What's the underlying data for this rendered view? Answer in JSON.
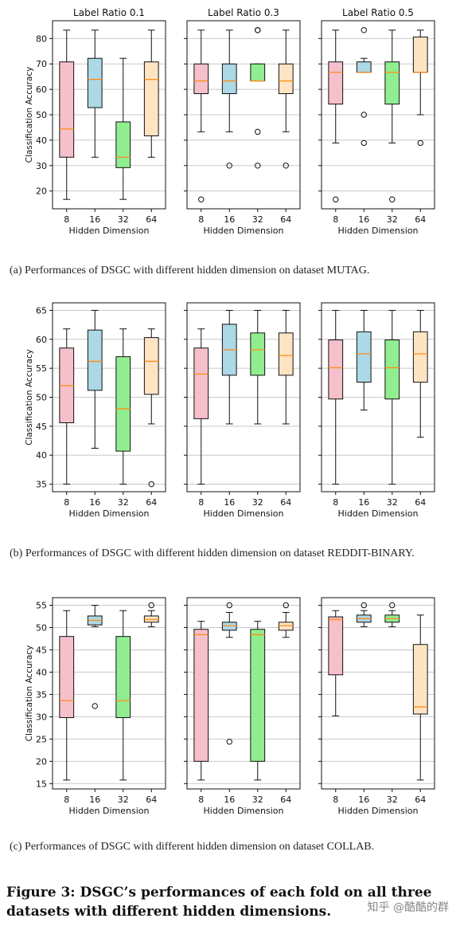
{
  "chart_data": [
    {
      "type": "box",
      "caption": "(a)  Performances of DSGC with different hidden dimension on dataset MUTAG.",
      "ylabel": "Classification Accuracy",
      "xlabel": "Hidden Dimension",
      "ylim": [
        13,
        87
      ],
      "yticks": [
        20,
        30,
        40,
        50,
        60,
        70,
        80
      ],
      "panels": [
        {
          "title": "Label Ratio 0.1",
          "boxes": [
            {
              "x": "8",
              "whislo": 16.7,
              "q1": 33.3,
              "med": 44.4,
              "q3": 70.8,
              "whishi": 83.3,
              "fliers": []
            },
            {
              "x": "16",
              "whislo": 33.3,
              "q1": 52.8,
              "med": 63.9,
              "q3": 72.2,
              "whishi": 83.3,
              "fliers": []
            },
            {
              "x": "32",
              "whislo": 16.7,
              "q1": 29.2,
              "med": 33.3,
              "q3": 47.2,
              "whishi": 72.2,
              "fliers": []
            },
            {
              "x": "64",
              "whislo": 33.3,
              "q1": 41.7,
              "med": 63.9,
              "q3": 70.8,
              "whishi": 83.3,
              "fliers": []
            }
          ]
        },
        {
          "title": "Label Ratio 0.3",
          "boxes": [
            {
              "x": "8",
              "whislo": 43.3,
              "q1": 58.3,
              "med": 63.3,
              "q3": 70.0,
              "whishi": 83.3,
              "fliers": [
                16.7
              ]
            },
            {
              "x": "16",
              "whislo": 43.3,
              "q1": 58.3,
              "med": 63.3,
              "q3": 70.0,
              "whishi": 83.3,
              "fliers": [
                30.0
              ]
            },
            {
              "x": "32",
              "whislo": 63.3,
              "q1": 63.3,
              "med": 63.3,
              "q3": 70.0,
              "whishi": 70.0,
              "fliers": [
                43.3,
                30.0,
                83.3,
                83.3
              ]
            },
            {
              "x": "64",
              "whislo": 43.3,
              "q1": 58.3,
              "med": 63.3,
              "q3": 70.0,
              "whishi": 83.3,
              "fliers": [
                30.0
              ]
            }
          ]
        },
        {
          "title": "Label Ratio 0.5",
          "boxes": [
            {
              "x": "8",
              "whislo": 38.9,
              "q1": 54.2,
              "med": 66.7,
              "q3": 70.8,
              "whishi": 83.3,
              "fliers": [
                16.7
              ]
            },
            {
              "x": "16",
              "whislo": 66.7,
              "q1": 66.7,
              "med": 66.7,
              "q3": 70.8,
              "whishi": 72.2,
              "fliers": [
                83.3,
                50.0,
                38.9
              ]
            },
            {
              "x": "32",
              "whislo": 38.9,
              "q1": 54.2,
              "med": 66.7,
              "q3": 70.8,
              "whishi": 83.3,
              "fliers": [
                16.7
              ]
            },
            {
              "x": "64",
              "whislo": 50.0,
              "q1": 66.7,
              "med": 66.7,
              "q3": 80.6,
              "whishi": 83.3,
              "fliers": [
                38.9
              ]
            }
          ]
        }
      ]
    },
    {
      "type": "box",
      "caption": "(b)  Performances of DSGC with different hidden dimension on dataset REDDIT-BINARY.",
      "ylabel": "Classification Accuracy",
      "xlabel": "Hidden Dimension",
      "ylim": [
        33.7,
        66.3
      ],
      "yticks": [
        35,
        40,
        45,
        50,
        55,
        60,
        65
      ],
      "panels": [
        {
          "title": "",
          "boxes": [
            {
              "x": "8",
              "whislo": 35.0,
              "q1": 45.6,
              "med": 52.0,
              "q3": 58.5,
              "whishi": 61.8,
              "fliers": []
            },
            {
              "x": "16",
              "whislo": 41.2,
              "q1": 51.2,
              "med": 56.2,
              "q3": 61.6,
              "whishi": 65.0,
              "fliers": []
            },
            {
              "x": "32",
              "whislo": 35.0,
              "q1": 40.7,
              "med": 48.0,
              "q3": 57.0,
              "whishi": 61.8,
              "fliers": []
            },
            {
              "x": "64",
              "whislo": 45.4,
              "q1": 50.5,
              "med": 56.2,
              "q3": 60.3,
              "whishi": 61.8,
              "fliers": [
                35.0
              ]
            }
          ]
        },
        {
          "title": "",
          "boxes": [
            {
              "x": "8",
              "whislo": 35.0,
              "q1": 46.3,
              "med": 54.0,
              "q3": 58.5,
              "whishi": 61.8,
              "fliers": []
            },
            {
              "x": "16",
              "whislo": 45.4,
              "q1": 53.8,
              "med": 58.2,
              "q3": 62.6,
              "whishi": 65.0,
              "fliers": []
            },
            {
              "x": "32",
              "whislo": 45.4,
              "q1": 53.8,
              "med": 58.2,
              "q3": 61.1,
              "whishi": 65.0,
              "fliers": []
            },
            {
              "x": "64",
              "whislo": 45.4,
              "q1": 53.8,
              "med": 57.2,
              "q3": 61.1,
              "whishi": 65.0,
              "fliers": []
            }
          ]
        },
        {
          "title": "",
          "boxes": [
            {
              "x": "8",
              "whislo": 35.0,
              "q1": 49.7,
              "med": 55.1,
              "q3": 59.9,
              "whishi": 65.0,
              "fliers": []
            },
            {
              "x": "16",
              "whislo": 47.8,
              "q1": 52.6,
              "med": 57.5,
              "q3": 61.3,
              "whishi": 65.0,
              "fliers": []
            },
            {
              "x": "32",
              "whislo": 35.0,
              "q1": 49.7,
              "med": 55.1,
              "q3": 59.9,
              "whishi": 65.0,
              "fliers": []
            },
            {
              "x": "64",
              "whislo": 43.1,
              "q1": 52.6,
              "med": 57.5,
              "q3": 61.3,
              "whishi": 65.0,
              "fliers": []
            }
          ]
        }
      ]
    },
    {
      "type": "box",
      "caption": "(c)  Performances of DSGC with different hidden dimension on dataset COLLAB.",
      "ylabel": "Classification Accuracy",
      "xlabel": "Hidden Dimension",
      "ylim": [
        13.8,
        56.7
      ],
      "yticks": [
        15,
        20,
        25,
        30,
        35,
        40,
        45,
        50,
        55
      ],
      "panels": [
        {
          "title": "",
          "boxes": [
            {
              "x": "8",
              "whislo": 15.8,
              "q1": 29.8,
              "med": 33.6,
              "q3": 48.0,
              "whishi": 53.8,
              "fliers": []
            },
            {
              "x": "16",
              "whislo": 50.2,
              "q1": 50.6,
              "med": 51.6,
              "q3": 52.6,
              "whishi": 55.0,
              "fliers": [
                32.4
              ]
            },
            {
              "x": "32",
              "whislo": 15.8,
              "q1": 29.8,
              "med": 33.6,
              "q3": 48.0,
              "whishi": 53.8,
              "fliers": []
            },
            {
              "x": "64",
              "whislo": 50.2,
              "q1": 51.2,
              "med": 51.8,
              "q3": 52.6,
              "whishi": 53.8,
              "fliers": [
                55.0
              ]
            }
          ]
        },
        {
          "title": "",
          "boxes": [
            {
              "x": "8",
              "whislo": 15.8,
              "q1": 20.0,
              "med": 48.4,
              "q3": 49.6,
              "whishi": 51.4,
              "fliers": []
            },
            {
              "x": "16",
              "whislo": 47.8,
              "q1": 49.4,
              "med": 50.4,
              "q3": 51.2,
              "whishi": 53.4,
              "fliers": [
                55.0,
                24.4
              ]
            },
            {
              "x": "32",
              "whislo": 15.8,
              "q1": 20.0,
              "med": 48.4,
              "q3": 49.6,
              "whishi": 51.4,
              "fliers": []
            },
            {
              "x": "64",
              "whislo": 47.8,
              "q1": 49.4,
              "med": 50.4,
              "q3": 51.2,
              "whishi": 53.4,
              "fliers": [
                55.0
              ]
            }
          ]
        },
        {
          "title": "",
          "boxes": [
            {
              "x": "8",
              "whislo": 30.2,
              "q1": 39.4,
              "med": 51.8,
              "q3": 52.4,
              "whishi": 53.8,
              "fliers": []
            },
            {
              "x": "16",
              "whislo": 50.2,
              "q1": 51.2,
              "med": 52.0,
              "q3": 52.8,
              "whishi": 53.8,
              "fliers": [
                55.0
              ]
            },
            {
              "x": "32",
              "whislo": 50.2,
              "q1": 51.2,
              "med": 52.0,
              "q3": 52.8,
              "whishi": 53.8,
              "fliers": [
                55.0
              ]
            },
            {
              "x": "64",
              "whislo": 15.8,
              "q1": 30.6,
              "med": 32.2,
              "q3": 46.2,
              "whishi": 52.8,
              "fliers": []
            }
          ]
        }
      ]
    }
  ],
  "box_colors": [
    "#f6c0cb",
    "#add8e6",
    "#90ee90",
    "#ffe4c4"
  ],
  "median_color": "#ff8c1a",
  "grid_color": "#c8c8c8",
  "figure_caption": "Figure 3: DSGC’s performances of each fold on all three datasets with different hidden dimensions.",
  "watermark": "知乎 @酷酷的群"
}
